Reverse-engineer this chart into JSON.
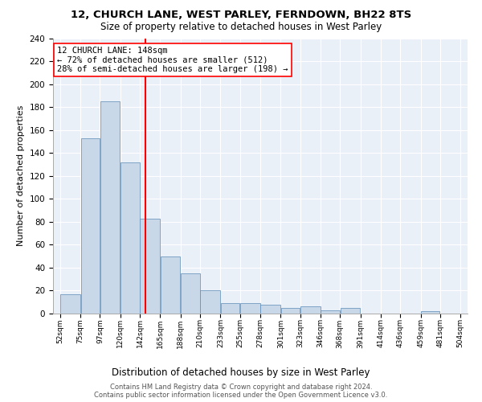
{
  "title1": "12, CHURCH LANE, WEST PARLEY, FERNDOWN, BH22 8TS",
  "title2": "Size of property relative to detached houses in West Parley",
  "xlabel": "Distribution of detached houses by size in West Parley",
  "ylabel": "Number of detached properties",
  "footnote1": "Contains HM Land Registry data © Crown copyright and database right 2024.",
  "footnote2": "Contains public sector information licensed under the Open Government Licence v3.0.",
  "annotation_line1": "12 CHURCH LANE: 148sqm",
  "annotation_line2": "← 72% of detached houses are smaller (512)",
  "annotation_line3": "28% of semi-detached houses are larger (198) →",
  "property_size": 148,
  "bar_color": "#c8d8e8",
  "bar_edge_color": "#5a8ab5",
  "vline_color": "red",
  "annotation_box_edge": "red",
  "background_color": "#eaf0f8",
  "bins": [
    52,
    75,
    97,
    120,
    142,
    165,
    188,
    210,
    233,
    255,
    278,
    301,
    323,
    346,
    368,
    391,
    414,
    436,
    459,
    481,
    504
  ],
  "counts": [
    17,
    153,
    185,
    132,
    83,
    50,
    35,
    20,
    9,
    9,
    8,
    5,
    6,
    3,
    5,
    0,
    0,
    0,
    2,
    0
  ],
  "ylim": [
    0,
    240
  ],
  "yticks": [
    0,
    20,
    40,
    60,
    80,
    100,
    120,
    140,
    160,
    180,
    200,
    220,
    240
  ]
}
